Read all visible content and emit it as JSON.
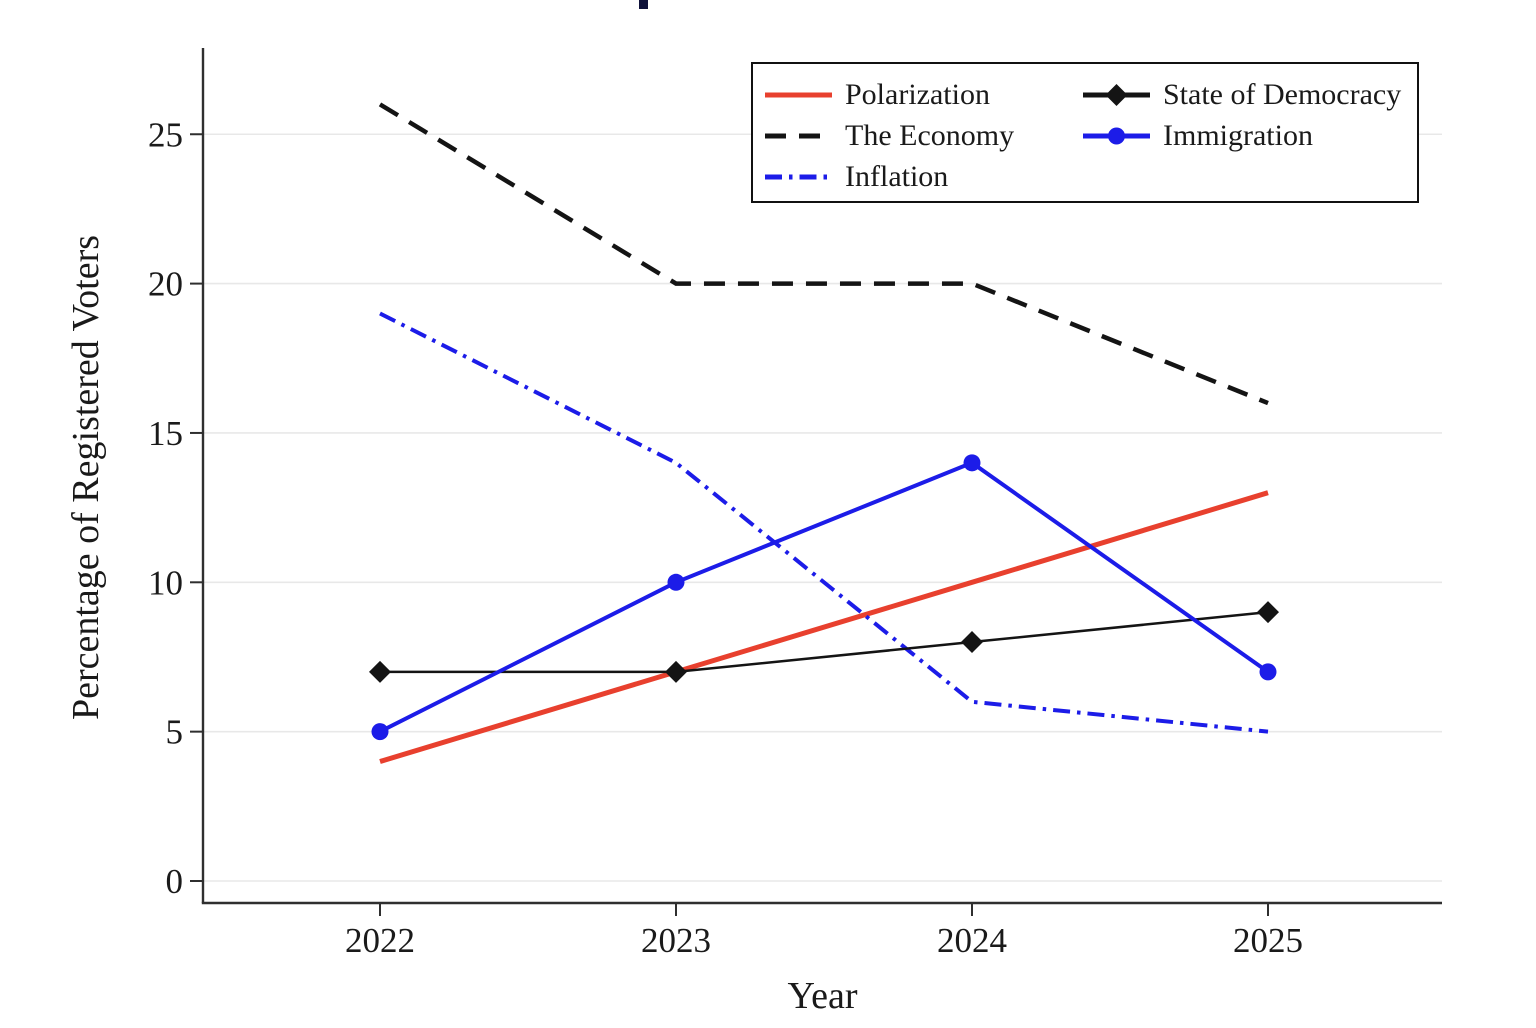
{
  "chart_data": {
    "type": "line",
    "title": "",
    "xlabel": "Year",
    "ylabel": "Percentage of Registered Voters",
    "x": [
      "2022",
      "2023",
      "2024",
      "2025"
    ],
    "yticks": [
      "0",
      "5",
      "10",
      "15",
      "20",
      "25"
    ],
    "ylim": [
      0,
      27.9
    ],
    "grid": "horizontal",
    "legend_position": "top-right-inside",
    "legend_columns": [
      [
        0,
        1,
        2
      ],
      [
        3,
        4
      ]
    ],
    "series": [
      {
        "name": "Polarization",
        "values": [
          4,
          7,
          10,
          13
        ],
        "color": "#e8402e",
        "line": "solid",
        "marker": "none"
      },
      {
        "name": "The Economy",
        "values": [
          26,
          20,
          20,
          16
        ],
        "color": "#141414",
        "line": "dashed",
        "marker": "none"
      },
      {
        "name": "Inflation",
        "values": [
          19,
          14,
          6,
          5
        ],
        "color": "#1c1ce8",
        "line": "dashdot",
        "marker": "none"
      },
      {
        "name": "State of Democracy",
        "values": [
          7,
          7,
          8,
          9
        ],
        "color": "#141414",
        "line": "solid",
        "marker": "diamond"
      },
      {
        "name": "Immigration",
        "values": [
          5,
          10,
          14,
          7
        ],
        "color": "#1c1ce8",
        "line": "solid",
        "marker": "circle"
      }
    ],
    "axis_color": "#2f2f2f",
    "grid_color": "#e8e8e8"
  }
}
